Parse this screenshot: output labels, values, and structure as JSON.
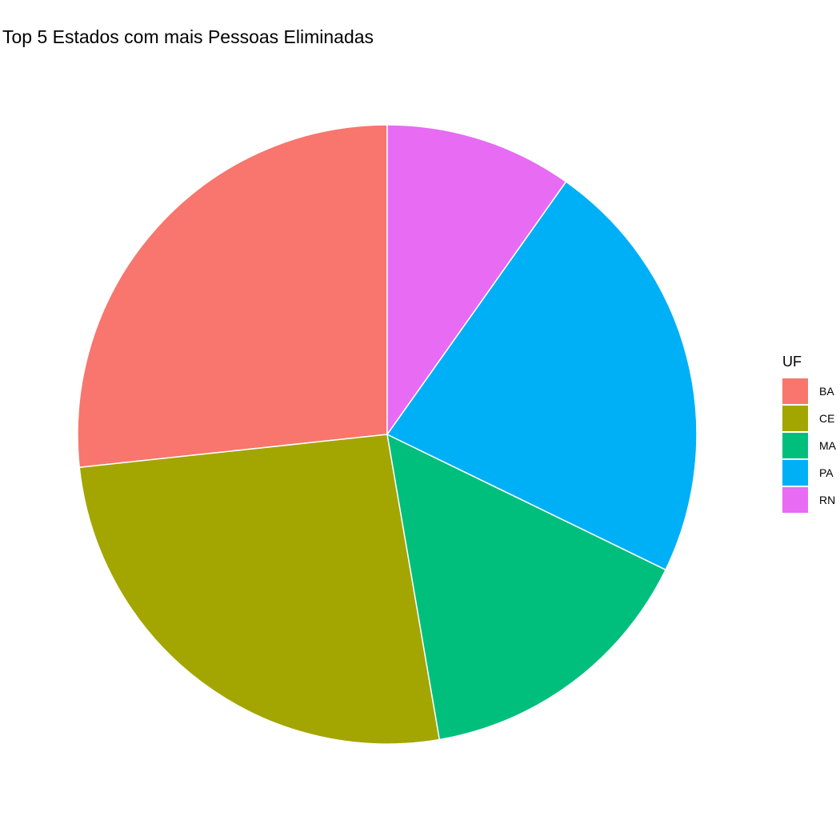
{
  "chart_data": {
    "type": "pie",
    "title": "Top 5 Estados com mais Pessoas Eliminadas",
    "legend_title": "UF",
    "legend_position": "right",
    "categories": [
      "BA",
      "CE",
      "MA",
      "PA",
      "RN"
    ],
    "values": [
      26.7,
      26.0,
      15.1,
      22.4,
      9.8
    ],
    "colors": [
      "#F8766D",
      "#A3A500",
      "#00BF7D",
      "#00B0F6",
      "#E76BF3"
    ],
    "start": "12 o'clock",
    "direction": "counterclockwise"
  }
}
